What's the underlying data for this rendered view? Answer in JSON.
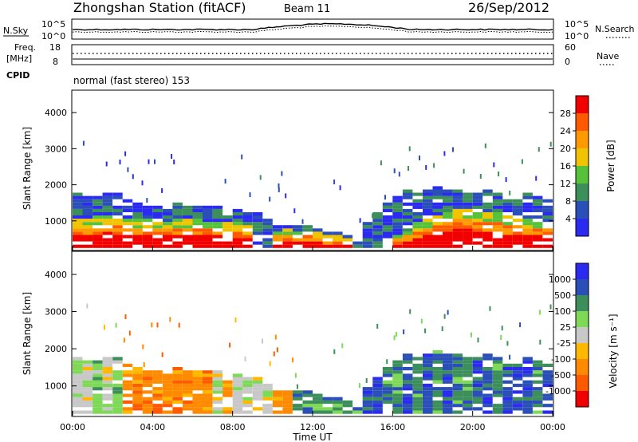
{
  "header": {
    "station": "Zhongshan Station (fitACF)",
    "beam": "Beam 11",
    "date": "26/Sep/2012"
  },
  "sky_panel": {
    "left_label": "N.Sky",
    "left_ticks": [
      "10^5",
      "10^0"
    ],
    "right_ticks": [
      "10^5",
      "10^0"
    ],
    "right_label": "N.Search"
  },
  "freq_panel": {
    "left_label_line1": "Freq.",
    "left_label_line2": "[MHz]",
    "left_ticks": [
      "18",
      "8"
    ],
    "right_ticks": [
      "60",
      "0"
    ],
    "right_label": "Nave"
  },
  "cpid": {
    "label": "CPID",
    "text": "normal (fast stereo) 153"
  },
  "colors": {
    "power": [
      "#2a2af0",
      "#2b4fb8",
      "#3c8f5a",
      "#55c23a",
      "#f0c400",
      "#ff9a00",
      "#ff5a00",
      "#f20000"
    ],
    "velocity": [
      "#2a2af0",
      "#2b4fb8",
      "#3c8f5a",
      "#7ed957",
      "#c8c8c8",
      "#ffb800",
      "#ff8a00",
      "#ff5a00",
      "#f20000"
    ]
  },
  "chart_data": [
    {
      "type": "heatmap",
      "title": "",
      "ylabel": "Slant Range [km]",
      "xlabel": "",
      "ylim": [
        200,
        4600
      ],
      "yticks": [
        "1000",
        "2000",
        "3000",
        "4000"
      ],
      "colorbar": {
        "label": "Power [dB]",
        "ticks": [
          "4",
          "8",
          "12",
          "16",
          "20",
          "24",
          "28"
        ],
        "range": [
          0,
          30
        ]
      },
      "x_hours": [
        0,
        0.5,
        1,
        1.5,
        2,
        2.5,
        3,
        3.5,
        4,
        4.5,
        5,
        5.5,
        6,
        6.5,
        7,
        7.5,
        8,
        8.5,
        9,
        9.5,
        10,
        10.5,
        11,
        11.5,
        12,
        12.5,
        13,
        13.5,
        14,
        14.5,
        15,
        15.5,
        16,
        16.5,
        17,
        17.5,
        18,
        18.5,
        19,
        19.5,
        20,
        20.5,
        21,
        21.5,
        22,
        22.5,
        23,
        23.5
      ],
      "power_strong_top_km": [
        1000,
        1050,
        1100,
        1150,
        1100,
        1050,
        1000,
        1000,
        950,
        950,
        1000,
        1000,
        1000,
        950,
        950,
        900,
        900,
        800,
        0,
        0,
        700,
        750,
        700,
        700,
        650,
        600,
        550,
        500,
        0,
        0,
        0,
        0,
        600,
        700,
        900,
        1000,
        1100,
        1200,
        1300,
        1300,
        1250,
        1200,
        1200,
        1100,
        1100,
        1050,
        1000,
        950
      ],
      "echo_top_km": [
        1700,
        1650,
        1700,
        1750,
        1700,
        1600,
        1500,
        1400,
        1400,
        1400,
        1450,
        1400,
        1400,
        1400,
        1350,
        1300,
        1300,
        1200,
        1200,
        1200,
        900,
        850,
        800,
        800,
        750,
        700,
        650,
        600,
        700,
        900,
        1200,
        1500,
        1700,
        1800,
        1700,
        1800,
        1900,
        1800,
        1800,
        1750,
        1700,
        1800,
        1700,
        1600,
        1650,
        1700,
        1650,
        1600
      ]
    },
    {
      "type": "heatmap",
      "title": "",
      "ylabel": "Slant Range [km]",
      "xlabel": "Time UT",
      "ylim": [
        200,
        4600
      ],
      "yticks": [
        "1000",
        "2000",
        "3000",
        "4000"
      ],
      "xticks": [
        "00:00",
        "04:00",
        "08:00",
        "12:00",
        "16:00",
        "20:00",
        "00:00"
      ],
      "colorbar": {
        "label": "Velocity [m s⁻¹]",
        "ticks": [
          "1000",
          "500",
          "100",
          "25",
          "-25",
          "-100",
          "-500",
          "-1000"
        ]
      },
      "velocity_class_by_hour": [
        4,
        4,
        3,
        4,
        3,
        6,
        6,
        6,
        6,
        6,
        6,
        6,
        6,
        6,
        4,
        6,
        4,
        4,
        4,
        4,
        6,
        6,
        2,
        2,
        2,
        2,
        2,
        2,
        2,
        1,
        1,
        2,
        2,
        1,
        2,
        1,
        2,
        1,
        2,
        2,
        1,
        1,
        2,
        1,
        1,
        1,
        2,
        1
      ]
    }
  ]
}
